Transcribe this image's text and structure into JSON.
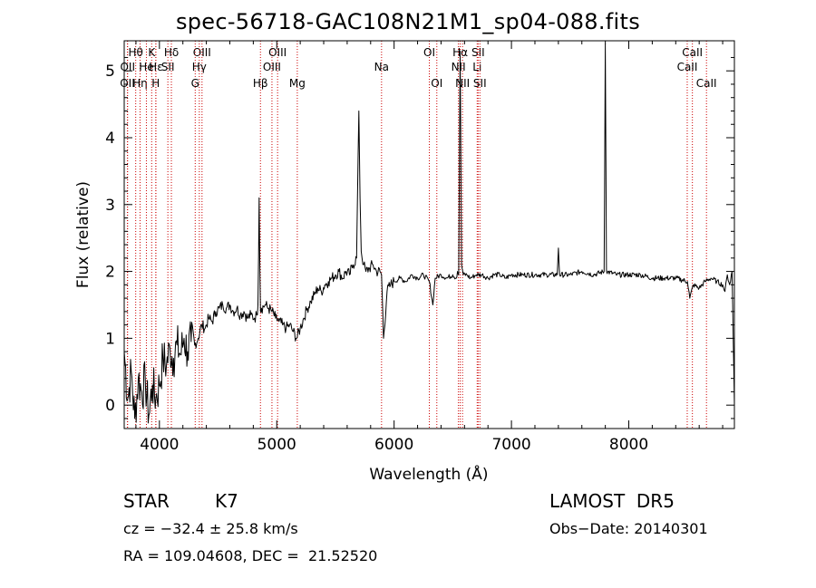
{
  "chart_data": {
    "type": "line",
    "title": "spec-56718-GAC108N21M1_sp04-088.fits",
    "xlabel": "Wavelength (Å)",
    "ylabel": "Flux (relative)",
    "xlim": [
      3700,
      8900
    ],
    "ylim": [
      -0.35,
      5.45
    ],
    "xticks": [
      4000,
      5000,
      6000,
      7000,
      8000
    ],
    "yticks": [
      0,
      1,
      2,
      3,
      4,
      5
    ],
    "grid": false,
    "series": [
      {
        "x": [
          3700,
          3730,
          3760,
          3790,
          3820,
          3850,
          3880,
          3910,
          3940,
          3970,
          4000,
          4030,
          4060,
          4090,
          4120,
          4150,
          4180,
          4210,
          4240,
          4270,
          4300,
          4330,
          4360,
          4390,
          4420,
          4450,
          4480,
          4510,
          4540,
          4570,
          4600,
          4630,
          4660,
          4690,
          4720,
          4750,
          4780,
          4810,
          4830,
          4840,
          4850,
          4861,
          4870,
          4900,
          4930,
          4960,
          4990,
          5020,
          5050,
          5080,
          5110,
          5140,
          5170,
          5200,
          5230,
          5260,
          5290,
          5320,
          5350,
          5380,
          5410,
          5440,
          5470,
          5500,
          5530,
          5560,
          5590,
          5620,
          5650,
          5680,
          5700,
          5710,
          5720,
          5740,
          5760,
          5790,
          5820,
          5850,
          5880,
          5893,
          5910,
          5940,
          5970,
          6000,
          6050,
          6100,
          6150,
          6200,
          6250,
          6300,
          6330,
          6350,
          6400,
          6450,
          6500,
          6530,
          6540,
          6550,
          6563,
          6575,
          6590,
          6620,
          6650,
          6700,
          6750,
          6800,
          6850,
          6900,
          6950,
          7000,
          7100,
          7200,
          7300,
          7390,
          7400,
          7410,
          7500,
          7600,
          7700,
          7790,
          7800,
          7810,
          7900,
          8000,
          8100,
          8200,
          8300,
          8400,
          8500,
          8520,
          8550,
          8600,
          8650,
          8700,
          8750,
          8800,
          8820,
          8840,
          8860,
          8880,
          8890,
          8900
        ],
        "values": [
          0.8,
          0.1,
          0.5,
          -0.2,
          0.4,
          0.2,
          0.35,
          -0.15,
          0.3,
          0.1,
          0.3,
          0.7,
          0.6,
          0.85,
          0.7,
          0.9,
          0.75,
          1.0,
          0.8,
          0.95,
          0.9,
          1.0,
          1.2,
          1.15,
          1.3,
          1.25,
          1.4,
          1.45,
          1.5,
          1.45,
          1.5,
          1.4,
          1.45,
          1.35,
          1.4,
          1.3,
          1.35,
          1.3,
          1.35,
          1.5,
          3.1,
          1.4,
          1.45,
          1.5,
          1.45,
          1.4,
          1.3,
          1.25,
          1.2,
          1.15,
          1.2,
          1.1,
          1.0,
          1.15,
          1.3,
          1.45,
          1.55,
          1.65,
          1.75,
          1.7,
          1.8,
          1.85,
          1.9,
          1.95,
          2.0,
          1.9,
          2.0,
          1.95,
          2.1,
          2.2,
          4.4,
          3.1,
          2.3,
          2.1,
          2.0,
          2.05,
          2.1,
          2.0,
          2.0,
          1.95,
          1.0,
          1.7,
          1.8,
          1.85,
          1.9,
          1.85,
          1.95,
          1.9,
          1.95,
          1.85,
          1.5,
          1.9,
          1.95,
          1.9,
          1.95,
          1.9,
          2.0,
          1.95,
          5.3,
          2.1,
          1.95,
          1.95,
          1.9,
          1.95,
          1.95,
          1.9,
          1.95,
          1.95,
          1.9,
          1.95,
          1.95,
          1.95,
          1.95,
          1.95,
          2.35,
          1.95,
          1.95,
          2.0,
          1.95,
          2.0,
          5.4,
          2.0,
          1.95,
          1.95,
          1.95,
          1.9,
          1.9,
          1.9,
          1.85,
          1.6,
          1.8,
          1.75,
          1.85,
          1.9,
          1.85,
          1.8,
          1.7,
          1.95,
          1.8,
          2.0,
          1.0,
          0.0
        ]
      }
    ],
    "line_markers": [
      {
        "label": "OII",
        "x": 3727,
        "row": 3
      },
      {
        "label": "Hθ",
        "x": 3798,
        "row": 1
      },
      {
        "label": "OII",
        "x": 3729,
        "row": 2
      },
      {
        "label": "Hη",
        "x": 3835,
        "row": 3
      },
      {
        "label": "He",
        "x": 3889,
        "row": 2
      },
      {
        "label": "K",
        "x": 3934,
        "row": 1
      },
      {
        "label": "H",
        "x": 3969,
        "row": 3
      },
      {
        "label": "Hε",
        "x": 3970,
        "row": 2
      },
      {
        "label": "Hδ",
        "x": 4102,
        "row": 1
      },
      {
        "label": "SII",
        "x": 4072,
        "row": 2
      },
      {
        "label": "OIII",
        "x": 4363,
        "row": 1
      },
      {
        "label": "Hγ",
        "x": 4340,
        "row": 2
      },
      {
        "label": "G",
        "x": 4305,
        "row": 3
      },
      {
        "label": "Hβ",
        "x": 4861,
        "row": 3
      },
      {
        "label": "OIII",
        "x": 5007,
        "row": 1
      },
      {
        "label": "OIII",
        "x": 4959,
        "row": 2
      },
      {
        "label": "Mg",
        "x": 5175,
        "row": 3
      },
      {
        "label": "Na",
        "x": 5893,
        "row": 2
      },
      {
        "label": "OI",
        "x": 6300,
        "row": 1
      },
      {
        "label": "OI",
        "x": 6364,
        "row": 3
      },
      {
        "label": "Hα",
        "x": 6563,
        "row": 1
      },
      {
        "label": "NII",
        "x": 6548,
        "row": 2
      },
      {
        "label": "NII",
        "x": 6583,
        "row": 3
      },
      {
        "label": "SII",
        "x": 6716,
        "row": 1
      },
      {
        "label": "Li",
        "x": 6708,
        "row": 2
      },
      {
        "label": "SII",
        "x": 6731,
        "row": 3
      },
      {
        "label": "CaII",
        "x": 8542,
        "row": 1
      },
      {
        "label": "CaII",
        "x": 8498,
        "row": 2
      },
      {
        "label": "CaII",
        "x": 8662,
        "row": 3
      }
    ],
    "marker_color": "#cc0000"
  },
  "info": {
    "class": "STAR",
    "subclass": "K7",
    "survey": "LAMOST  DR5",
    "cz": "cz = −32.4 ± 25.8 km/s",
    "obs_date": "Obs−Date: 20140301",
    "radec": "RA = 109.04608, DEC =  21.52520"
  }
}
